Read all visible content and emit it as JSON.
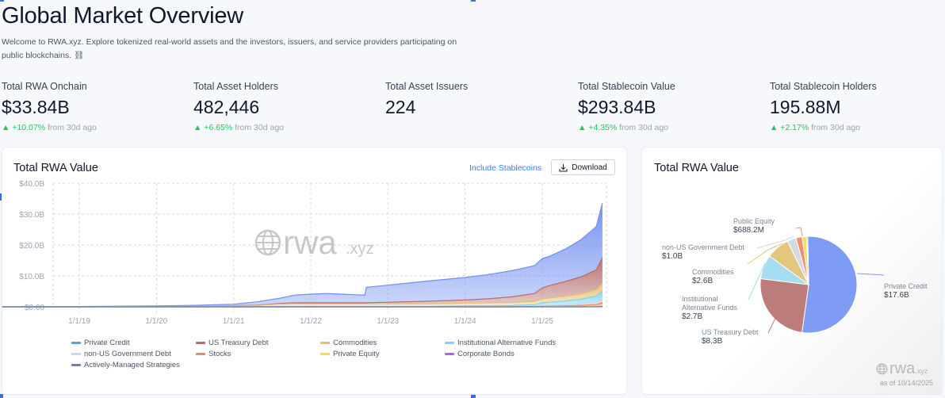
{
  "page": {
    "title": "Global Market Overview",
    "intro": "Welcome to RWA.xyz. Explore tokenized real-world assets and the investors, issuers, and service providers participating on public blockchains. ⛓"
  },
  "stats": [
    {
      "label": "Total RWA Onchain",
      "value": "$33.84B",
      "delta": "▲ +10.07%",
      "suffix": "from 30d ago"
    },
    {
      "label": "Total Asset Holders",
      "value": "482,446",
      "delta": "▲ +6.65%",
      "suffix": "from 30d ago"
    },
    {
      "label": "Total Asset Issuers",
      "value": "224",
      "delta": "",
      "suffix": ""
    },
    {
      "label": "Total Stablecoin Value",
      "value": "$293.84B",
      "delta": "▲ +4.35%",
      "suffix": "from 30d ago"
    },
    {
      "label": "Total Stablecoin Holders",
      "value": "195.88M",
      "delta": "▲ +2.17%",
      "suffix": "from 30d ago"
    }
  ],
  "area_card": {
    "title": "Total RWA Value",
    "include_stablecoins": "Include Stablecoins",
    "download_label": "Download",
    "watermark_main": "rwa",
    "watermark_suffix": ".xyz"
  },
  "pie_card": {
    "title": "Total RWA Value",
    "watermark_main": "rwa",
    "watermark_suffix": ".xyz",
    "as_of": "as of 10/14/2025"
  },
  "chart_data": [
    {
      "type": "area",
      "title": "Total RWA Value",
      "xlabel": "",
      "ylabel": "",
      "ylim": [
        0,
        40
      ],
      "y_ticks": [
        "$0.00",
        "$10.0B",
        "$20.0B",
        "$30.0B",
        "$40.0B"
      ],
      "x_ticks": [
        "1/1/19",
        "1/1/20",
        "1/1/21",
        "1/1/22",
        "1/1/23",
        "1/1/24",
        "1/1/25"
      ],
      "grid": true,
      "legend_position": "bottom",
      "x": [
        2018.0,
        2019.0,
        2020.0,
        2020.5,
        2021.0,
        2021.3,
        2021.6,
        2021.8,
        2022.0,
        2022.2,
        2022.4,
        2022.6,
        2022.7,
        2022.72,
        2023.0,
        2023.5,
        2024.0,
        2024.3,
        2024.6,
        2024.9,
        2025.0,
        2025.1,
        2025.3,
        2025.5,
        2025.7,
        2025.78
      ],
      "series": [
        {
          "name": "Private Credit",
          "color": "#6f8ff0",
          "values": [
            0.05,
            0.1,
            0.2,
            0.3,
            0.5,
            1.0,
            1.7,
            2.5,
            2.8,
            3.0,
            2.8,
            2.6,
            2.5,
            5.0,
            5.5,
            6.5,
            7.3,
            7.8,
            8.5,
            9.0,
            9.5,
            9.5,
            10.5,
            12.0,
            14.0,
            17.6
          ]
        },
        {
          "name": "US Treasury Debt",
          "color": "#b56c6c",
          "values": [
            0,
            0,
            0,
            0,
            0.05,
            0.1,
            0.2,
            0.3,
            0.3,
            0.3,
            0.3,
            0.3,
            0.3,
            0.3,
            0.5,
            0.8,
            1.0,
            1.3,
            1.8,
            2.5,
            3.5,
            4.0,
            4.8,
            5.5,
            6.5,
            8.3
          ]
        },
        {
          "name": "Commodities",
          "color": "#e2c070",
          "values": [
            0,
            0,
            0.1,
            0.2,
            0.3,
            0.5,
            0.8,
            0.9,
            0.9,
            0.9,
            0.9,
            0.9,
            0.9,
            0.9,
            0.9,
            0.9,
            0.9,
            1.0,
            1.0,
            1.1,
            1.3,
            1.4,
            1.5,
            1.7,
            2.0,
            2.6
          ]
        },
        {
          "name": "Institutional Alternative Funds",
          "color": "#7fd3ee",
          "values": [
            0,
            0,
            0,
            0,
            0,
            0,
            0.1,
            0.1,
            0.1,
            0.1,
            0.1,
            0.1,
            0.1,
            0.1,
            0.1,
            0.1,
            0.2,
            0.2,
            0.3,
            0.4,
            0.8,
            1.0,
            1.2,
            1.5,
            2.0,
            2.7
          ]
        },
        {
          "name": "non-US Government Debt",
          "color": "#cdd6e6",
          "values": [
            0,
            0,
            0,
            0,
            0,
            0,
            0,
            0,
            0,
            0,
            0,
            0,
            0,
            0,
            0,
            0,
            0.1,
            0.1,
            0.1,
            0.2,
            0.3,
            0.3,
            0.4,
            0.5,
            0.7,
            1.0
          ]
        },
        {
          "name": "Stocks",
          "color": "#f08a5d",
          "values": [
            0,
            0,
            0,
            0,
            0,
            0,
            0,
            0,
            0,
            0,
            0,
            0,
            0,
            0,
            0,
            0,
            0,
            0,
            0,
            0.1,
            0.1,
            0.1,
            0.2,
            0.3,
            0.4,
            0.7
          ]
        },
        {
          "name": "Private Equity",
          "color": "#f5dc5a",
          "values": [
            0,
            0,
            0,
            0,
            0,
            0,
            0,
            0,
            0,
            0,
            0,
            0,
            0,
            0,
            0,
            0,
            0,
            0,
            0,
            0,
            0.1,
            0.1,
            0.1,
            0.2,
            0.3,
            0.5
          ]
        },
        {
          "name": "Corporate Bonds",
          "color": "#9b6be0",
          "values": [
            0,
            0,
            0,
            0,
            0,
            0,
            0,
            0,
            0,
            0,
            0,
            0,
            0,
            0,
            0,
            0,
            0,
            0,
            0,
            0,
            0,
            0,
            0,
            0,
            0.05,
            0.1
          ]
        },
        {
          "name": "Actively-Managed Strategies",
          "color": "#5b86b8",
          "values": [
            0,
            0,
            0,
            0,
            0,
            0,
            0,
            0,
            0,
            0,
            0,
            0,
            0,
            0,
            0,
            0,
            0,
            0,
            0,
            0,
            0,
            0,
            0,
            0,
            0,
            0.05
          ]
        }
      ]
    },
    {
      "type": "pie",
      "title": "Total RWA Value",
      "slices": [
        {
          "name": "Private Credit",
          "value": 17.6,
          "label": "Private Credit",
          "value_label": "$17.6B",
          "color": "#7f9cf5"
        },
        {
          "name": "US Treasury Debt",
          "value": 8.3,
          "label": "US Treasury Debt",
          "value_label": "$8.3B",
          "color": "#bb7c7a"
        },
        {
          "name": "Institutional Alternative Funds",
          "value": 2.7,
          "label": "Institutional Alternative Funds",
          "value_label": "$2.7B",
          "color": "#a5def0"
        },
        {
          "name": "Commodities",
          "value": 2.6,
          "label": "Commodities",
          "value_label": "$2.6B",
          "color": "#e3c77e"
        },
        {
          "name": "non-US Government Debt",
          "value": 1.0,
          "label": "non-US Government Debt",
          "value_label": "$1.0B",
          "color": "#d3dae6"
        },
        {
          "name": "Public Equity",
          "value": 0.6882,
          "label": "Public Equity",
          "value_label": "$688.2M",
          "color": "#f0906a"
        },
        {
          "name": "Private Equity",
          "value": 0.5,
          "label": "",
          "value_label": "",
          "color": "#f7dc6a"
        },
        {
          "name": "Corporate Bonds",
          "value": 0.12,
          "label": "",
          "value_label": "",
          "color": "#a67ee3"
        }
      ]
    }
  ]
}
